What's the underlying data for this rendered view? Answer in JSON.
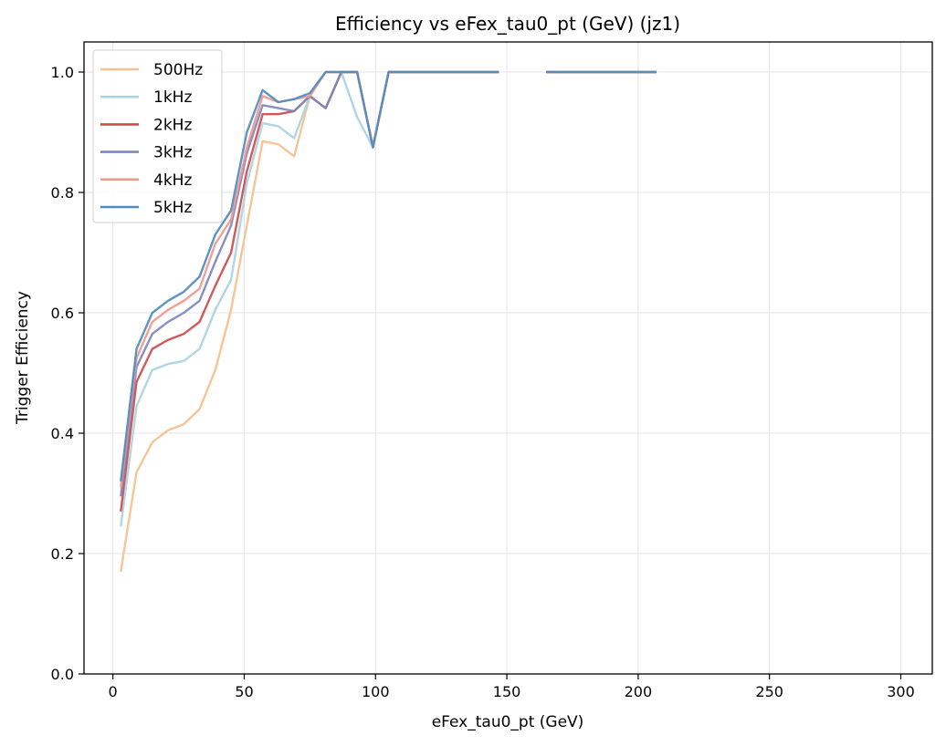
{
  "chart_data": {
    "type": "line",
    "title": "Efficiency vs eFex_tau0_pt (GeV) (jz1)",
    "xlabel": "eFex_tau0_pt (GeV)",
    "ylabel": "Trigger Efficiency",
    "xlim": [
      -11,
      312
    ],
    "ylim": [
      0.0,
      1.05
    ],
    "xticks": [
      0,
      50,
      100,
      150,
      200,
      250,
      300
    ],
    "yticks": [
      0.0,
      0.2,
      0.4,
      0.6,
      0.8,
      1.0
    ],
    "xtick_labels": [
      "0",
      "50",
      "100",
      "150",
      "200",
      "250",
      "300"
    ],
    "ytick_labels": [
      "0.0",
      "0.2",
      "0.4",
      "0.6",
      "0.8",
      "1.0"
    ],
    "grid": true,
    "legend_position": "top-left",
    "x": [
      3,
      9,
      15,
      21,
      27,
      33,
      39,
      45,
      51,
      57,
      63,
      69,
      75,
      81,
      87,
      93,
      99,
      105,
      111,
      117,
      123,
      129,
      135,
      141,
      147,
      153,
      159,
      165,
      171,
      177,
      183,
      189,
      195,
      201,
      207
    ],
    "series": [
      {
        "name": "500Hz",
        "color": "#f4c08f",
        "values": [
          0.17,
          0.335,
          0.385,
          0.405,
          0.415,
          0.44,
          0.505,
          0.605,
          0.745,
          0.885,
          0.88,
          0.86,
          0.96,
          1.0,
          1.0,
          1.0,
          0.875,
          1.0,
          1.0,
          1.0,
          1.0,
          1.0,
          1.0,
          1.0,
          1.0,
          null,
          null,
          1.0,
          1.0,
          1.0,
          1.0,
          1.0,
          1.0,
          1.0,
          1.0
        ]
      },
      {
        "name": "1kHz",
        "color": "#a8d3e0",
        "values": [
          0.245,
          0.445,
          0.505,
          0.515,
          0.52,
          0.54,
          0.605,
          0.655,
          0.815,
          0.915,
          0.91,
          0.89,
          0.96,
          0.94,
          1.0,
          0.925,
          0.875,
          1.0,
          1.0,
          1.0,
          1.0,
          1.0,
          1.0,
          1.0,
          1.0,
          null,
          null,
          1.0,
          1.0,
          1.0,
          1.0,
          1.0,
          1.0,
          1.0,
          1.0
        ]
      },
      {
        "name": "2kHz",
        "color": "#cc4c4c",
        "values": [
          0.27,
          0.485,
          0.54,
          0.555,
          0.565,
          0.585,
          0.645,
          0.7,
          0.835,
          0.93,
          0.93,
          0.935,
          0.96,
          0.94,
          1.0,
          1.0,
          0.875,
          1.0,
          1.0,
          1.0,
          1.0,
          1.0,
          1.0,
          1.0,
          1.0,
          null,
          null,
          1.0,
          1.0,
          1.0,
          1.0,
          1.0,
          1.0,
          1.0,
          1.0
        ]
      },
      {
        "name": "3kHz",
        "color": "#7f86bd",
        "values": [
          0.295,
          0.51,
          0.565,
          0.585,
          0.6,
          0.62,
          0.685,
          0.745,
          0.865,
          0.945,
          0.94,
          0.935,
          0.96,
          0.94,
          1.0,
          1.0,
          0.875,
          1.0,
          1.0,
          1.0,
          1.0,
          1.0,
          1.0,
          1.0,
          1.0,
          null,
          null,
          1.0,
          1.0,
          1.0,
          1.0,
          1.0,
          1.0,
          1.0,
          1.0
        ]
      },
      {
        "name": "4kHz",
        "color": "#f3978a",
        "values": [
          0.31,
          0.525,
          0.585,
          0.605,
          0.62,
          0.64,
          0.715,
          0.755,
          0.875,
          0.96,
          0.95,
          0.955,
          0.96,
          1.0,
          1.0,
          1.0,
          0.875,
          1.0,
          1.0,
          1.0,
          1.0,
          1.0,
          1.0,
          1.0,
          1.0,
          null,
          null,
          1.0,
          1.0,
          1.0,
          1.0,
          1.0,
          1.0,
          1.0,
          1.0
        ]
      },
      {
        "name": "5kHz",
        "color": "#4f8bbf",
        "values": [
          0.32,
          0.54,
          0.6,
          0.62,
          0.635,
          0.66,
          0.73,
          0.77,
          0.9,
          0.97,
          0.95,
          0.955,
          0.965,
          1.0,
          1.0,
          1.0,
          0.875,
          1.0,
          1.0,
          1.0,
          1.0,
          1.0,
          1.0,
          1.0,
          1.0,
          null,
          null,
          1.0,
          1.0,
          1.0,
          1.0,
          1.0,
          1.0,
          1.0,
          1.0
        ]
      }
    ]
  }
}
